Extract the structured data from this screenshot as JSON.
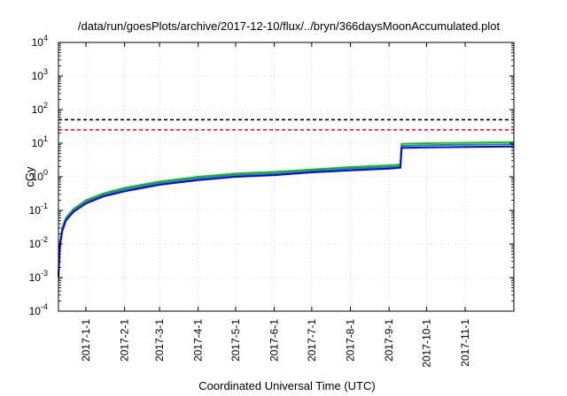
{
  "chart_data": {
    "type": "line",
    "title": "/data/run/goesPlots/archive/2017-12-10/flux/../bryn/366daysMoonAccumulated.plot",
    "xlabel": "Coordinated Universal Time (UTC)",
    "ylabel": "cGy",
    "yscale": "log",
    "ylim": [
      0.0001,
      10000
    ],
    "xlim": [
      "2016-12-10",
      "2017-12-10"
    ],
    "grid": true,
    "legend": "none",
    "y_ticks": [
      {
        "value": 0.0001,
        "base": "10",
        "exp": "-4"
      },
      {
        "value": 0.001,
        "base": "10",
        "exp": "-3"
      },
      {
        "value": 0.01,
        "base": "10",
        "exp": "-2"
      },
      {
        "value": 0.1,
        "base": "10",
        "exp": "-1"
      },
      {
        "value": 1,
        "base": "10",
        "exp": "0"
      },
      {
        "value": 10,
        "base": "10",
        "exp": "1"
      },
      {
        "value": 100,
        "base": "10",
        "exp": "2"
      },
      {
        "value": 1000,
        "base": "10",
        "exp": "3"
      },
      {
        "value": 10000,
        "base": "10",
        "exp": "4"
      }
    ],
    "x_ticks": [
      "2017-1-1",
      "2017-2-1",
      "2017-3-1",
      "2017-4-1",
      "2017-5-1",
      "2017-6-1",
      "2017-7-1",
      "2017-8-1",
      "2017-9-1",
      "2017-10-1",
      "2017-11-1"
    ],
    "reference_lines": [
      {
        "value": 50,
        "color": "#000000",
        "style": "dashed"
      },
      {
        "value": 25,
        "color": "#ff0000",
        "style": "dashed"
      }
    ],
    "series": [
      {
        "color": "#22bb22",
        "points": [
          [
            "2016-12-10",
            0.001
          ],
          [
            "2016-12-11",
            0.01
          ],
          [
            "2016-12-13",
            0.03
          ],
          [
            "2016-12-16",
            0.06
          ],
          [
            "2016-12-22",
            0.11
          ],
          [
            "2017-01-01",
            0.2
          ],
          [
            "2017-01-15",
            0.32
          ],
          [
            "2017-02-01",
            0.47
          ],
          [
            "2017-03-01",
            0.72
          ],
          [
            "2017-04-01",
            1.0
          ],
          [
            "2017-05-01",
            1.25
          ],
          [
            "2017-06-01",
            1.4
          ],
          [
            "2017-07-01",
            1.65
          ],
          [
            "2017-08-01",
            1.95
          ],
          [
            "2017-09-01",
            2.2
          ],
          [
            "2017-09-10",
            2.3
          ],
          [
            "2017-09-11",
            9.5
          ],
          [
            "2017-10-01",
            10.0
          ],
          [
            "2017-11-01",
            10.3
          ],
          [
            "2017-12-10",
            10.8
          ]
        ]
      },
      {
        "color": "#1a8a8a",
        "points": [
          [
            "2016-12-10",
            0.001
          ],
          [
            "2016-12-11",
            0.009
          ],
          [
            "2016-12-13",
            0.027
          ],
          [
            "2016-12-16",
            0.055
          ],
          [
            "2016-12-22",
            0.1
          ],
          [
            "2017-01-01",
            0.18
          ],
          [
            "2017-01-15",
            0.29
          ],
          [
            "2017-02-01",
            0.42
          ],
          [
            "2017-03-01",
            0.65
          ],
          [
            "2017-04-01",
            0.9
          ],
          [
            "2017-05-01",
            1.12
          ],
          [
            "2017-06-01",
            1.26
          ],
          [
            "2017-07-01",
            1.5
          ],
          [
            "2017-08-01",
            1.75
          ],
          [
            "2017-09-01",
            1.95
          ],
          [
            "2017-09-10",
            2.05
          ],
          [
            "2017-09-11",
            8.3
          ],
          [
            "2017-10-01",
            8.7
          ],
          [
            "2017-11-01",
            9.0
          ],
          [
            "2017-12-10",
            9.3
          ]
        ]
      },
      {
        "color": "#0000ff",
        "points": [
          [
            "2016-12-10",
            0.001
          ],
          [
            "2016-12-11",
            0.008
          ],
          [
            "2016-12-13",
            0.024
          ],
          [
            "2016-12-16",
            0.05
          ],
          [
            "2016-12-22",
            0.09
          ],
          [
            "2017-01-01",
            0.16
          ],
          [
            "2017-01-15",
            0.26
          ],
          [
            "2017-02-01",
            0.37
          ],
          [
            "2017-03-01",
            0.58
          ],
          [
            "2017-04-01",
            0.8
          ],
          [
            "2017-05-01",
            1.0
          ],
          [
            "2017-06-01",
            1.12
          ],
          [
            "2017-07-01",
            1.35
          ],
          [
            "2017-08-01",
            1.55
          ],
          [
            "2017-09-01",
            1.75
          ],
          [
            "2017-09-10",
            1.85
          ],
          [
            "2017-09-11",
            7.2
          ],
          [
            "2017-10-01",
            7.5
          ],
          [
            "2017-11-01",
            7.7
          ],
          [
            "2017-12-10",
            8.0
          ]
        ]
      }
    ]
  }
}
